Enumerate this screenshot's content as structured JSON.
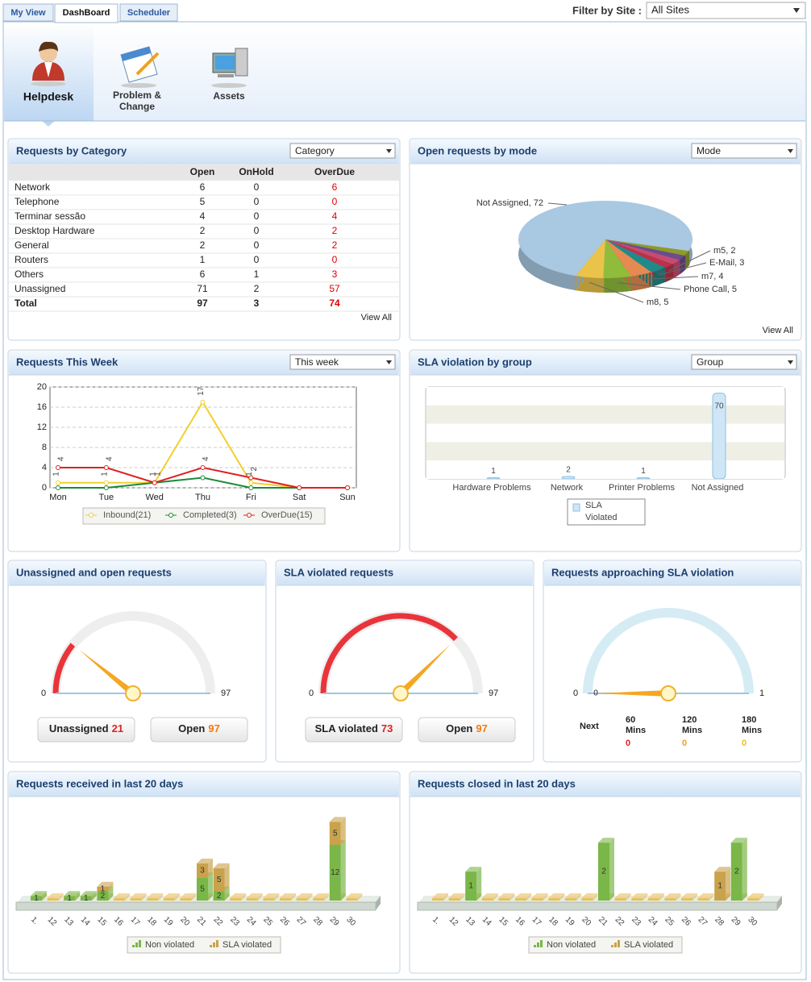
{
  "tabs": [
    "My View",
    "DashBoard",
    "Scheduler"
  ],
  "filter": {
    "label": "Filter by Site :",
    "value": "All Sites"
  },
  "modules": [
    "Helpdesk",
    "Problem & Change",
    "Assets"
  ],
  "category": {
    "title": "Requests by Category",
    "select": "Category",
    "columns": [
      "Open",
      "OnHold",
      "OverDue"
    ],
    "rows": [
      [
        "Network",
        6,
        0,
        6
      ],
      [
        "Telephone",
        5,
        0,
        0
      ],
      [
        "Terminar sessão",
        4,
        0,
        4
      ],
      [
        "Desktop Hardware",
        2,
        0,
        2
      ],
      [
        "General",
        2,
        0,
        2
      ],
      [
        "Routers",
        1,
        0,
        0
      ],
      [
        "Others",
        6,
        1,
        3
      ],
      [
        "Unassigned",
        71,
        2,
        57
      ]
    ],
    "total": [
      "Total",
      97,
      3,
      74
    ],
    "link": "View All"
  },
  "mode": {
    "title": "Open requests by mode",
    "select": "Mode",
    "link": "View All",
    "type": "pie",
    "slices": [
      {
        "label": "Not Assigned, 72",
        "value": 72,
        "color": "#a9c8e2"
      },
      {
        "label": null,
        "value": 2,
        "color": "#8f9a2a"
      },
      {
        "label": null,
        "value": 2,
        "color": "#6a4d8c"
      },
      {
        "label": null,
        "value": 2,
        "color": "#c84a72"
      },
      {
        "label": "m5, 2",
        "value": 2,
        "color": "#b8324a"
      },
      {
        "label": "E-Mail, 3",
        "value": 3,
        "color": "#1f8a8a"
      },
      {
        "label": "m7, 4",
        "value": 4,
        "color": "#e58a50"
      },
      {
        "label": "Phone Call, 5",
        "value": 5,
        "color": "#90bc3c"
      },
      {
        "label": "m8, 5",
        "value": 5,
        "color": "#eac44a"
      }
    ]
  },
  "week": {
    "title": "Requests This Week",
    "select": "This week",
    "type": "line",
    "categories": [
      "Mon",
      "Tue",
      "Wed",
      "Thu",
      "Fri",
      "Sat",
      "Sun"
    ],
    "series": [
      {
        "name": "Inbound(21)",
        "color": "#f0d030",
        "values": [
          1,
          1,
          1,
          17,
          1,
          0,
          0
        ]
      },
      {
        "name": "Completed(3)",
        "color": "#1a8a3a",
        "values": [
          0,
          0,
          1,
          2,
          0,
          0,
          0
        ]
      },
      {
        "name": "OverDue(15)",
        "color": "#e02020",
        "values": [
          4,
          4,
          1,
          4,
          2,
          0,
          0
        ]
      }
    ],
    "ylim": [
      0,
      20
    ],
    "yticks": [
      0,
      4,
      8,
      12,
      16,
      20
    ],
    "grid": true
  },
  "sla_group": {
    "title": "SLA violation by group",
    "select": "Group",
    "type": "bar",
    "categories": [
      "Hardware Problems",
      "Network",
      "Printer Problems",
      "Not Assigned"
    ],
    "series": [
      {
        "name": "SLA Violated",
        "color": "#cfe6f7",
        "values": [
          1,
          2,
          1,
          70
        ]
      }
    ],
    "ylim": [
      0,
      75
    ]
  },
  "gauges": [
    {
      "title": "Unassigned and open requests",
      "type": "gauge",
      "min": 0,
      "max": 97,
      "value": 21,
      "color": "#e8343a",
      "buttons": [
        {
          "label": "Unassigned",
          "value": 21,
          "color": "#e02020"
        },
        {
          "label": "Open",
          "value": 97,
          "color": "#f07a10"
        }
      ]
    },
    {
      "title": "SLA violated requests",
      "type": "gauge",
      "min": 0,
      "max": 97,
      "value": 73,
      "color": "#e8343a",
      "buttons": [
        {
          "label": "SLA violated",
          "value": 73,
          "color": "#e02020"
        },
        {
          "label": "Open",
          "value": 97,
          "color": "#f07a10"
        }
      ]
    },
    {
      "title": "Requests approaching SLA violation",
      "type": "gauge",
      "min": 0,
      "max": 1,
      "value": 0,
      "color": "#bfe0ee",
      "needle_label": 0,
      "legend_title": "Next",
      "legend": [
        {
          "label": "60 Mins",
          "value": 0,
          "color": "#e02020"
        },
        {
          "label": "120 Mins",
          "value": 0,
          "color": "#f0a020"
        },
        {
          "label": "180 Mins",
          "value": 0,
          "color": "#e8c020"
        }
      ]
    }
  ],
  "days": [
    {
      "title": "Requests received in last 20 days",
      "type": "bar3d",
      "categories": [
        "1.",
        "12",
        "13",
        "14",
        "15",
        "16",
        "17",
        "18",
        "19",
        "20",
        "21",
        "22",
        "23",
        "24",
        "25",
        "26",
        "27",
        "28",
        "29",
        "30"
      ],
      "series": [
        {
          "name": "Non violated",
          "color": "#7ab648",
          "values": [
            1,
            0,
            1,
            1,
            2,
            0,
            0,
            0,
            0,
            0,
            5,
            2,
            0,
            0,
            0,
            0,
            0,
            0,
            12,
            0
          ]
        },
        {
          "name": "SLA violated",
          "color": "#c9a24c",
          "values": [
            0,
            0,
            0,
            0,
            1,
            0,
            0,
            0,
            0,
            0,
            3,
            5,
            0,
            0,
            0,
            0,
            0,
            0,
            5,
            0
          ]
        }
      ],
      "ylim": [
        0,
        20
      ]
    },
    {
      "title": "Requests closed in last 20 days",
      "type": "bar3d",
      "categories": [
        "1.",
        "12",
        "13",
        "14",
        "15",
        "16",
        "17",
        "18",
        "19",
        "20",
        "21",
        "22",
        "23",
        "24",
        "25",
        "26",
        "27",
        "28",
        "29",
        "30"
      ],
      "series": [
        {
          "name": "Non violated",
          "color": "#7ab648",
          "values": [
            0,
            0,
            1,
            0,
            0,
            0,
            0,
            0,
            0,
            0,
            2,
            0,
            0,
            0,
            0,
            0,
            0,
            0,
            2,
            0
          ]
        },
        {
          "name": "SLA violated",
          "color": "#c9a24c",
          "values": [
            0,
            0,
            0,
            0,
            0,
            0,
            0,
            0,
            0,
            0,
            0,
            0,
            0,
            0,
            0,
            0,
            0,
            1,
            0,
            0
          ]
        }
      ],
      "ylim": [
        0,
        3.2
      ]
    }
  ]
}
